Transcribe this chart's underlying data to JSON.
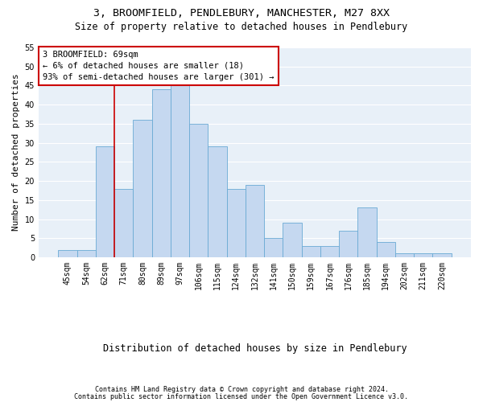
{
  "title_line1": "3, BROOMFIELD, PENDLEBURY, MANCHESTER, M27 8XX",
  "title_line2": "Size of property relative to detached houses in Pendlebury",
  "xlabel": "Distribution of detached houses by size in Pendlebury",
  "ylabel": "Number of detached properties",
  "categories": [
    "45sqm",
    "54sqm",
    "62sqm",
    "71sqm",
    "80sqm",
    "89sqm",
    "97sqm",
    "106sqm",
    "115sqm",
    "124sqm",
    "132sqm",
    "141sqm",
    "150sqm",
    "159sqm",
    "167sqm",
    "176sqm",
    "185sqm",
    "194sqm",
    "202sqm",
    "211sqm",
    "220sqm"
  ],
  "values": [
    2,
    2,
    29,
    18,
    36,
    44,
    46,
    35,
    29,
    18,
    19,
    5,
    9,
    3,
    3,
    7,
    13,
    4,
    1,
    1,
    1
  ],
  "bar_color": "#c5d8f0",
  "bar_edgecolor": "#6aaad4",
  "vline_x": 2.5,
  "vline_color": "#cc0000",
  "annotation_text": "3 BROOMFIELD: 69sqm\n← 6% of detached houses are smaller (18)\n93% of semi-detached houses are larger (301) →",
  "annotation_box_color": "#ffffff",
  "annotation_box_edgecolor": "#cc0000",
  "ylim": [
    0,
    55
  ],
  "yticks": [
    0,
    5,
    10,
    15,
    20,
    25,
    30,
    35,
    40,
    45,
    50,
    55
  ],
  "background_color": "#e8f0f8",
  "grid_color": "#ffffff",
  "fig_background": "#ffffff",
  "footer_line1": "Contains HM Land Registry data © Crown copyright and database right 2024.",
  "footer_line2": "Contains public sector information licensed under the Open Government Licence v3.0.",
  "title_fontsize": 9.5,
  "subtitle_fontsize": 8.5,
  "ylabel_fontsize": 8,
  "xlabel_fontsize": 8.5,
  "tick_fontsize": 7,
  "annotation_fontsize": 7.5,
  "footer_fontsize": 6
}
